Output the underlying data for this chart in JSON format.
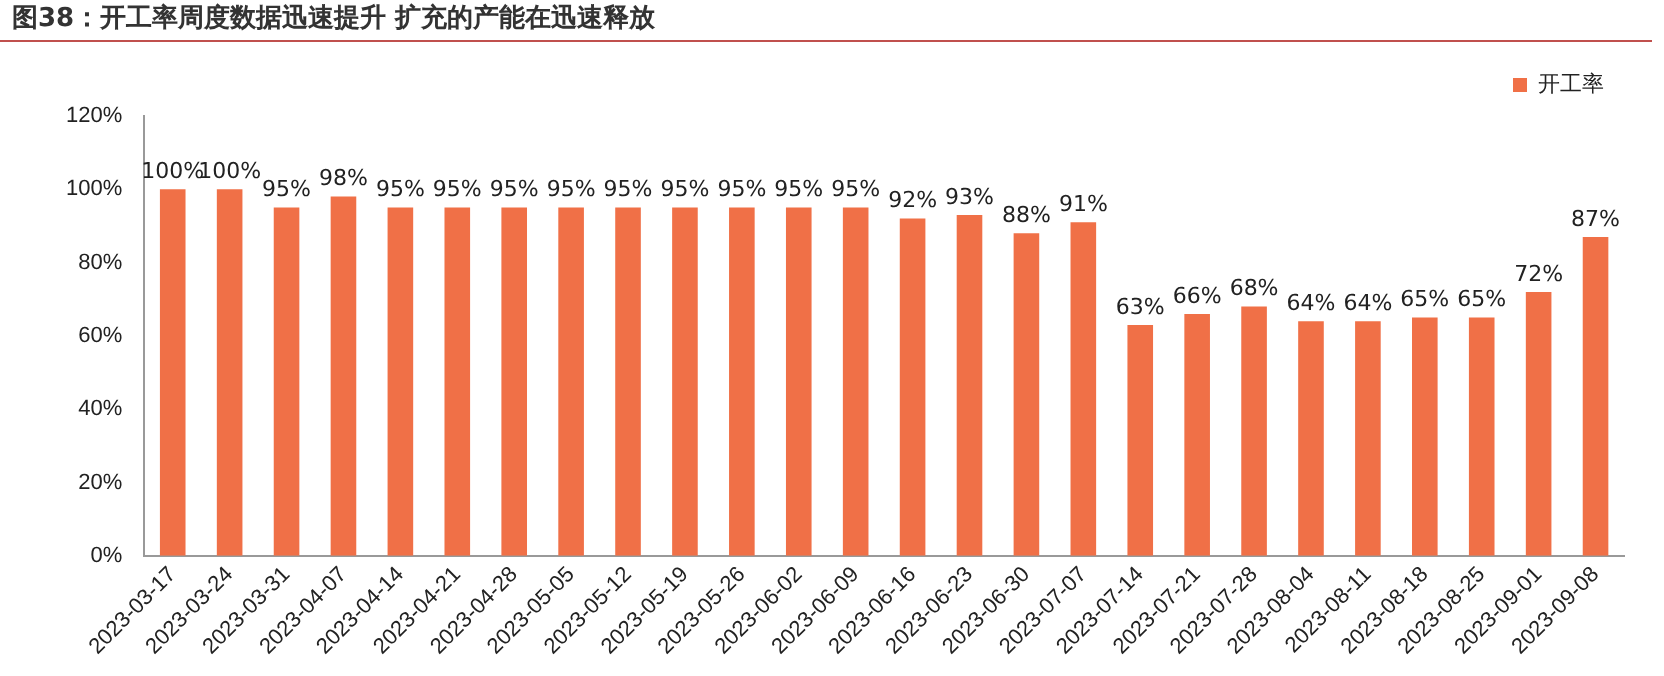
{
  "chart_data": {
    "type": "bar",
    "title": "图38：开工率周度数据迅速提升 扩充的产能在迅速释放",
    "categories": [
      "2023-03-17",
      "2023-03-24",
      "2023-03-31",
      "2023-04-07",
      "2023-04-14",
      "2023-04-21",
      "2023-04-28",
      "2023-05-05",
      "2023-05-12",
      "2023-05-19",
      "2023-05-26",
      "2023-06-02",
      "2023-06-09",
      "2023-06-16",
      "2023-06-23",
      "2023-06-30",
      "2023-07-07",
      "2023-07-14",
      "2023-07-21",
      "2023-07-28",
      "2023-08-04",
      "2023-08-11",
      "2023-08-18",
      "2023-08-25",
      "2023-09-01",
      "2023-09-08"
    ],
    "series": [
      {
        "name": "开工率",
        "color": "#f07047",
        "values": [
          100,
          100,
          95,
          98,
          95,
          95,
          95,
          95,
          95,
          95,
          95,
          95,
          95,
          92,
          93,
          88,
          91,
          63,
          66,
          68,
          64,
          64,
          65,
          65,
          72,
          87
        ],
        "value_labels": [
          "100%",
          "100%",
          "95%",
          "98%",
          "95%",
          "95%",
          "95%",
          "95%",
          "95%",
          "95%",
          "95%",
          "95%",
          "95%",
          "92%",
          "93%",
          "88%",
          "91%",
          "63%",
          "66%",
          "68%",
          "64%",
          "64%",
          "65%",
          "65%",
          "72%",
          "87%"
        ]
      }
    ],
    "ylim": [
      0,
      120
    ],
    "yticks": [
      {
        "value": 0,
        "label": "0%"
      },
      {
        "value": 20,
        "label": "20%"
      },
      {
        "value": 40,
        "label": "40%"
      },
      {
        "value": 60,
        "label": "60%"
      },
      {
        "value": 80,
        "label": "80%"
      },
      {
        "value": 100,
        "label": "100%"
      },
      {
        "value": 120,
        "label": "120%"
      }
    ],
    "grid": false,
    "legend": "top right"
  }
}
